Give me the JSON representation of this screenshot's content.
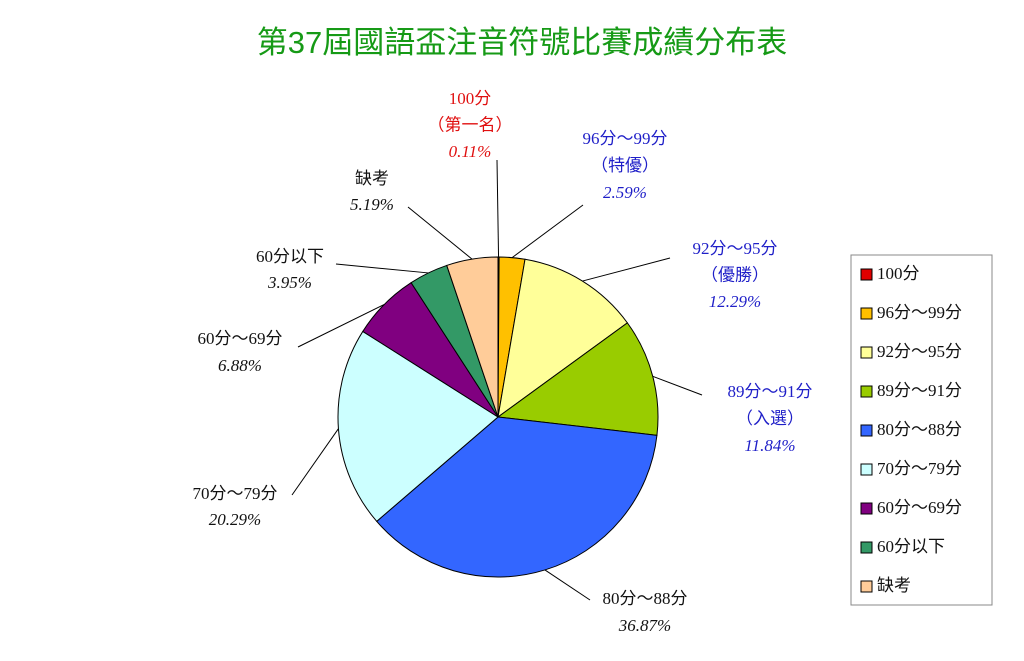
{
  "chart_data": {
    "type": "pie",
    "title": "第37屆國語盃注音符號比賽成績分布表",
    "categories": [
      "100分",
      "96分～99分",
      "92分～95分",
      "89分～91分",
      "80分～88分",
      "70分～79分",
      "60分～69分",
      "60分以下",
      "缺考"
    ],
    "label_notes": [
      "（第一名）",
      "（特優）",
      "（優勝）",
      "（入選）",
      null,
      null,
      null,
      null,
      null
    ],
    "values": [
      0.11,
      2.59,
      12.29,
      11.84,
      36.87,
      20.29,
      6.88,
      3.95,
      5.19
    ],
    "value_labels": [
      "0.11%",
      "2.59%",
      "12.29%",
      "11.84%",
      "36.87%",
      "20.29%",
      "6.88%",
      "3.95%",
      "5.19%"
    ],
    "colors": [
      "#e00000",
      "#ffc000",
      "#ffff99",
      "#99cc00",
      "#3366ff",
      "#ccffff",
      "#800080",
      "#339966",
      "#ffcc99"
    ],
    "label_colors": [
      "#e01010",
      "#1f1fc8",
      "#1f1fc8",
      "#1f1fc8",
      "#111111",
      "#111111",
      "#111111",
      "#111111",
      "#111111"
    ],
    "title_color": "#169a16",
    "legend": "right"
  }
}
